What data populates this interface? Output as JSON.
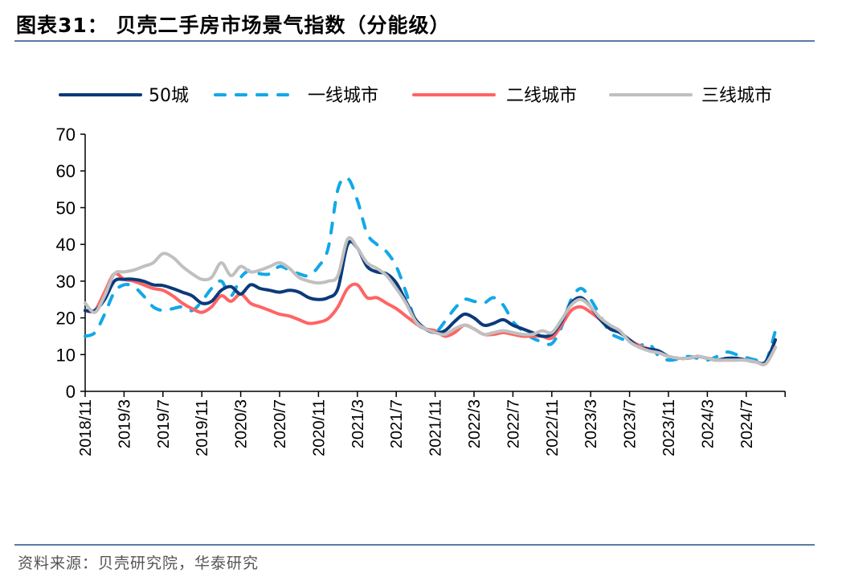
{
  "header": {
    "title": "图表31：  贝壳二手房市场景气指数（分能级）"
  },
  "footer": {
    "source": "资料来源：贝壳研究院，华泰研究"
  },
  "chart_data": {
    "type": "line",
    "title": "",
    "xlabel": "",
    "ylabel": "",
    "ylim": [
      0,
      70
    ],
    "yticks": [
      0,
      10,
      20,
      30,
      40,
      50,
      60,
      70
    ],
    "grid": false,
    "legend_position": "top",
    "x_tick_labels": [
      "2018/11",
      "2019/3",
      "2019/7",
      "2019/11",
      "2020/3",
      "2020/7",
      "2020/11",
      "2021/3",
      "2021/7",
      "2021/11",
      "2022/3",
      "2022/7",
      "2022/11",
      "2023/3",
      "2023/7",
      "2023/11",
      "2024/3",
      "2024/7"
    ],
    "x": [
      "2018/11",
      "2018/12",
      "2019/1",
      "2019/2",
      "2019/3",
      "2019/4",
      "2019/5",
      "2019/6",
      "2019/7",
      "2019/8",
      "2019/9",
      "2019/10",
      "2019/11",
      "2019/12",
      "2020/1",
      "2020/2",
      "2020/3",
      "2020/4",
      "2020/5",
      "2020/6",
      "2020/7",
      "2020/8",
      "2020/9",
      "2020/10",
      "2020/11",
      "2020/12",
      "2021/1",
      "2021/2",
      "2021/3",
      "2021/4",
      "2021/5",
      "2021/6",
      "2021/7",
      "2021/8",
      "2021/9",
      "2021/10",
      "2021/11",
      "2021/12",
      "2022/1",
      "2022/2",
      "2022/3",
      "2022/4",
      "2022/5",
      "2022/6",
      "2022/7",
      "2022/8",
      "2022/9",
      "2022/10",
      "2022/11",
      "2022/12",
      "2023/1",
      "2023/2",
      "2023/3",
      "2023/4",
      "2023/5",
      "2023/6",
      "2023/7",
      "2023/8",
      "2023/9",
      "2023/10",
      "2023/11",
      "2023/12",
      "2024/1",
      "2024/2",
      "2024/3",
      "2024/4",
      "2024/5",
      "2024/6",
      "2024/7",
      "2024/8",
      "2024/9",
      "2024/10"
    ],
    "series": [
      {
        "name": "50城",
        "color": "#0b3a7a",
        "dash": false,
        "values": [
          22,
          22,
          25,
          30,
          30.5,
          30.5,
          30,
          29,
          28.8,
          28,
          27,
          26,
          24,
          24.5,
          27.5,
          28.5,
          26.5,
          29,
          28,
          27.5,
          27,
          27.5,
          27,
          25.5,
          25,
          25.5,
          28,
          40,
          39,
          34,
          32.5,
          32,
          29.5,
          24.5,
          19.5,
          17,
          16,
          16.5,
          19,
          21,
          20,
          18,
          18.5,
          19.5,
          18,
          17,
          16,
          15,
          15.5,
          19,
          24,
          25.5,
          23,
          19.5,
          17,
          16,
          14,
          12,
          11.5,
          11,
          9.5,
          9,
          9,
          9.5,
          9,
          8.5,
          9,
          9,
          8.5,
          8,
          8,
          14
        ]
      },
      {
        "name": "一线城市",
        "color": "#12a8e8",
        "dash": true,
        "values": [
          15,
          16,
          21,
          27,
          29,
          28.5,
          26,
          23,
          22,
          22.5,
          23,
          22,
          24.5,
          28,
          30,
          26,
          31,
          33,
          32,
          32,
          34,
          33,
          32,
          31.5,
          34,
          39,
          55,
          58,
          52,
          43,
          40,
          38,
          34,
          27,
          19,
          17,
          16,
          19,
          22.5,
          25,
          24.5,
          24,
          25.5,
          23.5,
          19,
          16.5,
          14.5,
          13.5,
          13,
          17.5,
          25,
          28,
          25,
          20.5,
          16,
          14.5,
          13.5,
          12.5,
          13,
          9.6,
          8.5,
          8.8,
          9.5,
          9,
          8.5,
          9.5,
          10.7,
          10,
          9.2,
          8.5,
          8,
          16.5
        ]
      },
      {
        "name": "二线城市",
        "color": "#ff6464",
        "dash": false,
        "values": [
          22,
          22,
          27,
          32,
          30.5,
          30,
          29,
          28,
          27.5,
          26,
          24,
          22.5,
          21.5,
          23,
          26,
          24.5,
          26.5,
          24,
          23,
          22,
          21,
          20.5,
          19.5,
          18.5,
          18.8,
          19.8,
          23,
          28,
          29,
          25.5,
          25.5,
          24,
          22.5,
          20.5,
          18.5,
          17,
          16.5,
          15,
          16,
          18,
          17,
          15.5,
          15.5,
          16,
          15.5,
          15,
          15,
          15,
          14.5,
          18,
          22,
          23,
          21.5,
          19.5,
          17.5,
          16,
          14,
          12.5,
          11.5,
          10.5,
          9.5,
          9,
          9,
          9.5,
          9,
          8.5,
          8.5,
          8.5,
          8.5,
          8,
          7.5,
          12
        ]
      },
      {
        "name": "三线城市",
        "color": "#c0c0c0",
        "dash": false,
        "values": [
          24,
          21.5,
          26,
          32,
          32.5,
          33,
          34,
          35,
          37.5,
          36.5,
          34,
          32,
          30.5,
          31,
          35,
          31.5,
          34,
          32.5,
          33,
          34,
          35,
          33.5,
          31,
          30,
          29.5,
          30,
          31.5,
          41.5,
          39,
          35,
          33.5,
          31.5,
          28,
          24,
          19,
          17,
          16,
          15.5,
          17,
          18,
          17,
          15.5,
          16,
          16.5,
          16,
          15.5,
          15.5,
          16.5,
          16,
          19.5,
          23.5,
          25,
          23,
          20,
          18,
          16.5,
          13.5,
          12,
          11,
          10.5,
          9.5,
          9,
          9,
          9.5,
          9,
          8.5,
          8.5,
          8.5,
          8.5,
          8,
          7.5,
          12
        ]
      }
    ]
  }
}
